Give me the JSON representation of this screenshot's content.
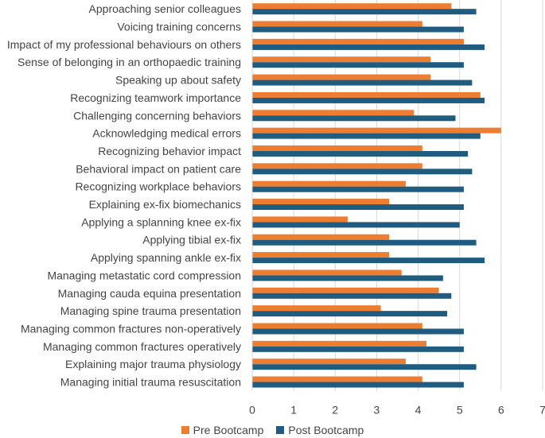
{
  "chart_data": {
    "type": "bar",
    "orientation": "horizontal",
    "categories": [
      "Approaching senior colleagues",
      "Voicing training concerns",
      "Impact of my professional behaviours on others",
      "Sense of belonging in an orthopaedic training",
      "Speaking up about safety",
      "Recognizing teamwork importance",
      "Challenging concerning behaviors",
      "Acknowledging medical errors",
      "Recognizing behavior impact",
      "Behavioral impact on patient care",
      "Recognizing workplace behaviors",
      "Explaining ex-fix biomechanics",
      "Applying a splanning knee ex-fix",
      "Applying tibial ex-fix",
      "Applying spanning ankle ex-fix",
      "Managing metastatic cord compression",
      "Managing cauda equina presentation",
      "Managing spine trauma presentation",
      "Managing common fractures  non-operatively",
      "Managing common fractures operatively",
      "Explaining major trauma physiology",
      "Managing initial trauma resuscitation"
    ],
    "series": [
      {
        "name": "Pre Bootcamp",
        "color": "#ED7D31",
        "values": [
          4.8,
          4.1,
          5.1,
          4.3,
          4.3,
          5.5,
          3.9,
          6.0,
          4.1,
          4.1,
          3.7,
          3.3,
          2.3,
          3.3,
          3.3,
          3.6,
          4.5,
          3.1,
          4.1,
          4.2,
          3.7,
          4.1
        ]
      },
      {
        "name": "Post Bootcamp",
        "color": "#1F5C7F",
        "values": [
          5.4,
          5.1,
          5.6,
          5.1,
          5.3,
          5.6,
          4.9,
          5.5,
          5.2,
          5.3,
          5.1,
          5.1,
          5.0,
          5.4,
          5.6,
          4.6,
          4.8,
          4.7,
          5.1,
          5.1,
          5.4,
          5.1
        ]
      }
    ],
    "xlim": [
      0,
      7
    ],
    "xticks": [
      "0",
      "1",
      "2",
      "3",
      "4",
      "5",
      "6",
      "7"
    ],
    "grid": true,
    "legend": "bottom"
  }
}
